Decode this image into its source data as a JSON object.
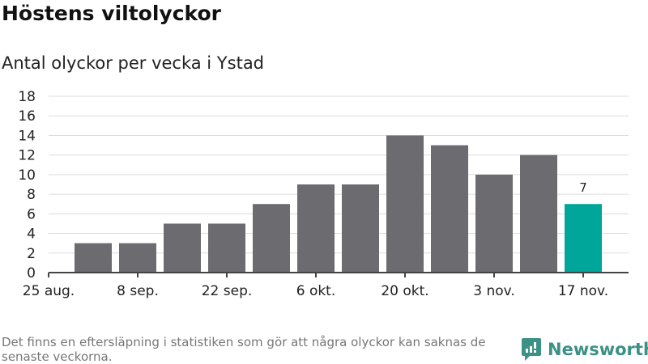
{
  "title": "Höstens viltolyckor",
  "subtitle": "Antal olyckor per vecka i Ystad",
  "note": "Det finns en eftersläpning i statistiken som gör att några olyckor kan saknas de senaste veckorna.",
  "logo": "Newsworthy",
  "colors": {
    "bar": "#6c6b70",
    "highlight": "#00a69a",
    "grid": "#dddddd",
    "axis": "#444444"
  },
  "chart_data": {
    "type": "bar",
    "title": "Antal olyckor per vecka i Ystad",
    "xlabel": "",
    "ylabel": "",
    "ylim": [
      0,
      18
    ],
    "yticks": [
      0,
      2,
      4,
      6,
      8,
      10,
      12,
      14,
      16,
      18
    ],
    "xticks": [
      "25 aug.",
      "8 sep.",
      "22 sep.",
      "6 okt.",
      "20 okt.",
      "3 nov.",
      "17 nov."
    ],
    "values": [
      3,
      3,
      5,
      5,
      7,
      9,
      9,
      14,
      13,
      10,
      12,
      7
    ],
    "highlight_index": 11,
    "data_labels": [
      {
        "index": 11,
        "text": "7"
      }
    ],
    "grid": true
  }
}
